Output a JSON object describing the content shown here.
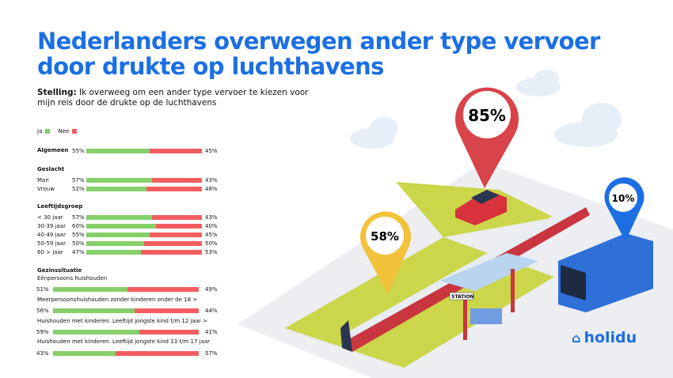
{
  "title": "Nederlanders overwegen ander type vervoer door drukte op luchthavens",
  "statement": {
    "label": "Stelling:",
    "text": " Ik overweeg om een ander type vervoer te kiezen voor mijn reis door de drukte op de luchthavens"
  },
  "colors": {
    "ja": "#86cf6b",
    "nee": "#f45d5f",
    "accent": "#1b6fe3"
  },
  "chart_data": {
    "type": "bar",
    "stacked": true,
    "orientation": "horizontal",
    "legend": {
      "placement": "top-left",
      "entries": [
        "Ja",
        "Nee"
      ]
    },
    "groups": [
      {
        "heading": "Algemeen",
        "rows": [
          {
            "label": "",
            "ja": 55,
            "nee": 45
          }
        ]
      },
      {
        "heading": "Geslacht",
        "rows": [
          {
            "label": "Man",
            "ja": 57,
            "nee": 43
          },
          {
            "label": "Vrouw",
            "ja": 52,
            "nee": 48
          }
        ]
      },
      {
        "heading": "Leeftijdsgroep",
        "rows": [
          {
            "label": "< 30 jaar",
            "ja": 57,
            "nee": 43
          },
          {
            "label": "30-39 jaar",
            "ja": 60,
            "nee": 40
          },
          {
            "label": "40-49 jaar",
            "ja": 55,
            "nee": 45
          },
          {
            "label": "50-59 jaar",
            "ja": 50,
            "nee": 50
          },
          {
            "label": "60 > jaar",
            "ja": 47,
            "nee": 53
          }
        ]
      },
      {
        "heading": "Gezinssituatie",
        "rows": [
          {
            "label": "Eénpersoons huishouden",
            "ja": 51,
            "nee": 49
          },
          {
            "label": "Meerpersoonshuishouden zonder kinderen onder de 18 >",
            "ja": 56,
            "nee": 44
          },
          {
            "label": "Huishouden met kinderen. Leeftijd jongste kind t/m 12 jaar >",
            "ja": 59,
            "nee": 41
          },
          {
            "label": "Huishouden met kinderen. Leeftijd jongste kind 13 t/m 17 jaar",
            "ja": 43,
            "nee": 57
          }
        ]
      }
    ]
  },
  "illustration": {
    "pins": [
      {
        "value": "85%",
        "color": "#d9434a"
      },
      {
        "value": "58%",
        "color": "#f2c23b"
      },
      {
        "value": "10%",
        "color": "#1b6fe3"
      }
    ],
    "station_sign": "STATION"
  },
  "logo": "holidu"
}
